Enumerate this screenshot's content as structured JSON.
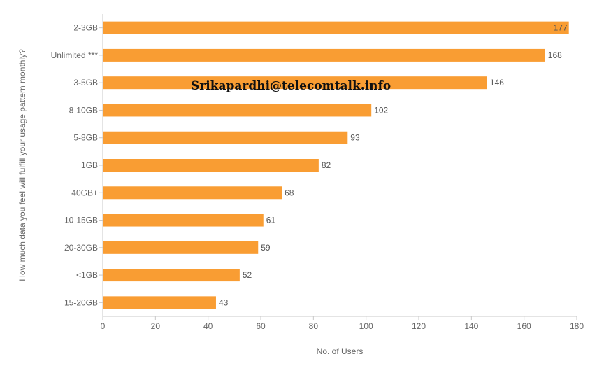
{
  "chart_data": {
    "type": "bar",
    "orientation": "horizontal",
    "categories": [
      "2-3GB",
      "Unlimited ***",
      "3-5GB",
      "8-10GB",
      "5-8GB",
      "1GB",
      "40GB+",
      "10-15GB",
      "20-30GB",
      "<1GB",
      "15-20GB"
    ],
    "values": [
      177,
      168,
      146,
      102,
      93,
      82,
      68,
      61,
      59,
      52,
      43
    ],
    "xlabel": "No. of Users",
    "ylabel": "How much data you feel will fulfill your usage pattern monthly?",
    "xlim": [
      0,
      180
    ],
    "xticks": [
      0,
      20,
      40,
      60,
      80,
      100,
      120,
      140,
      160,
      180
    ],
    "grid": false,
    "bar_color": "#F99D33",
    "watermark": "Srikapardhi@telecomtalk.info"
  }
}
